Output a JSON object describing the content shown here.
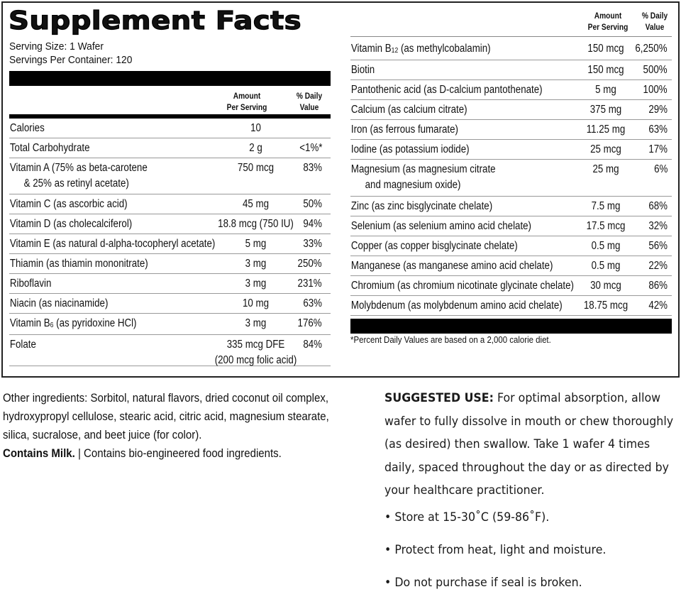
{
  "label": {
    "title": "Supplement Facts",
    "serving_size": "Serving Size: 1 Wafer",
    "servings_per_container": "Servings Per Container: 120",
    "col_amount_line1": "Amount",
    "col_amount_line2": "Per Serving",
    "col_dv_line1": "% Daily",
    "col_dv_line2": "Value",
    "left_rows": [
      {
        "name": "Calories",
        "amount": "10",
        "dv": ""
      },
      {
        "name": "Total Carbohydrate",
        "amount": "2 g",
        "dv": "<1%*"
      },
      {
        "name": "Vitamin A (75% as beta-carotene",
        "name2": "& 25% as retinyl acetate)",
        "amount": "750 mcg",
        "dv": "83%"
      },
      {
        "name": "Vitamin C (as ascorbic acid)",
        "amount": "45 mg",
        "dv": "50%"
      },
      {
        "name": "Vitamin D (as cholecalciferol)",
        "amount": "18.8 mcg (750 IU)",
        "dv": "94%"
      },
      {
        "name": "Vitamin E (as natural d-alpha-tocopheryl acetate)",
        "amount": "5 mg",
        "dv": "33%"
      },
      {
        "name": "Thiamin (as thiamin mononitrate)",
        "amount": "3 mg",
        "dv": "250%"
      },
      {
        "name": "Riboflavin",
        "amount": "3 mg",
        "dv": "231%"
      },
      {
        "name": "Niacin (as niacinamide)",
        "amount": "10 mg",
        "dv": "63%"
      },
      {
        "name_pre": "Vitamin B",
        "name_sub": "6",
        "name_post": " (as pyridoxine HCl)",
        "amount": "3 mg",
        "dv": "176%"
      },
      {
        "name": "Folate",
        "amount": "335 mcg DFE",
        "amount2": "(200 mcg folic acid)",
        "dv": "84%"
      }
    ],
    "right_rows": [
      {
        "name_pre": "Vitamin B",
        "name_sub": "12",
        "name_post": " (as methylcobalamin)",
        "amount": "150 mcg",
        "dv": "6,250%"
      },
      {
        "name": "Biotin",
        "amount": "150 mcg",
        "dv": "500%"
      },
      {
        "name": "Pantothenic acid (as D-calcium pantothenate)",
        "amount": "5 mg",
        "dv": "100%"
      },
      {
        "name": "Calcium (as calcium citrate)",
        "amount": "375 mg",
        "dv": "29%"
      },
      {
        "name": "Iron (as ferrous fumarate)",
        "amount": "11.25 mg",
        "dv": "63%"
      },
      {
        "name": "Iodine (as potassium iodide)",
        "amount": "25 mcg",
        "dv": "17%"
      },
      {
        "name": "Magnesium (as magnesium citrate",
        "name2": "and magnesium oxide)",
        "amount": "25 mg",
        "dv": "6%"
      },
      {
        "name": "Zinc (as zinc bisglycinate chelate)",
        "amount": "7.5 mg",
        "dv": "68%"
      },
      {
        "name": "Selenium (as selenium amino acid chelate)",
        "amount": "17.5 mcg",
        "dv": "32%"
      },
      {
        "name": "Copper (as copper bisglycinate chelate)",
        "amount": "0.5 mg",
        "dv": "56%"
      },
      {
        "name": "Manganese (as manganese amino acid chelate)",
        "amount": "0.5 mg",
        "dv": "22%"
      },
      {
        "name": "Chromium (as chromium nicotinate glycinate chelate)",
        "amount": "30 mcg",
        "dv": "86%"
      },
      {
        "name": "Molybdenum (as molybdenum amino acid chelate)",
        "amount": "18.75 mcg",
        "dv": "42%"
      }
    ],
    "footnote": "*Percent Daily Values are based on a 2,000 calorie diet."
  },
  "other_ingredients": {
    "text": "Other ingredients: Sorbitol, natural flavors, dried coconut oil complex, hydroxypropyl cellulose, stearic acid, citric acid, magnesium stearate, silica, sucralose, and beet juice (for color).",
    "allergen_bold": "Contains Milk.",
    "allergen_rest": " | Contains bio-engineered food ingredients."
  },
  "suggested_use": {
    "heading": "SUGGESTED USE:",
    "text": " For optimal absorption, allow wafer to fully dissolve in mouth or chew thoroughly (as desired) then swallow. Take 1 wafer 4 times daily, spaced throughout the day or as directed by your healthcare practitioner."
  },
  "storage_bullets": [
    "• Store at 15-30˚C (59-86˚F).",
    "• Protect from heat, light and moisture.",
    "• Do not purchase if seal is broken."
  ]
}
